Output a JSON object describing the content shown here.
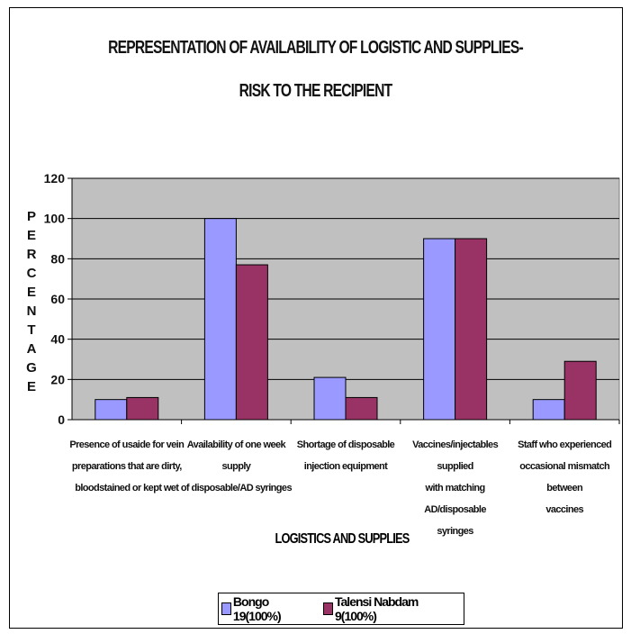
{
  "chart_data": {
    "type": "bar",
    "title": "REPRESENTATION OF AVAILABILITY OF LOGISTIC AND SUPPLIES-",
    "subtitle": "RISK TO THE RECIPIENT",
    "xlabel": "LOGISTICS AND SUPPLIES",
    "ylabel": "PERCENTAGE",
    "ylim": [
      0,
      120
    ],
    "yticks": [
      0,
      20,
      40,
      60,
      80,
      100,
      120
    ],
    "grid": true,
    "legend_position": "bottom",
    "categories": [
      [
        "Presence of usaide for vein",
        "preparations that are dirty,",
        "bloodstained or kept wet"
      ],
      [
        "Availability of one week supply",
        "of disposable/AD syringes"
      ],
      [
        "Shortage of disposable",
        "injection equipment"
      ],
      [
        "Vaccines/injectables supplied",
        "with matching AD/disposable",
        "syringes"
      ],
      [
        "Staff who experienced",
        "occasional mismatch between",
        "vaccines"
      ]
    ],
    "series": [
      {
        "name": "Bongo 19(100%)",
        "color": "#9999ff",
        "values": [
          10,
          100,
          21,
          90,
          10
        ]
      },
      {
        "name": "Talensi Nabdam 9(100%)",
        "color": "#993366",
        "values": [
          11,
          77,
          11,
          90,
          29
        ]
      }
    ],
    "plot_background": "#c0c0c0"
  }
}
